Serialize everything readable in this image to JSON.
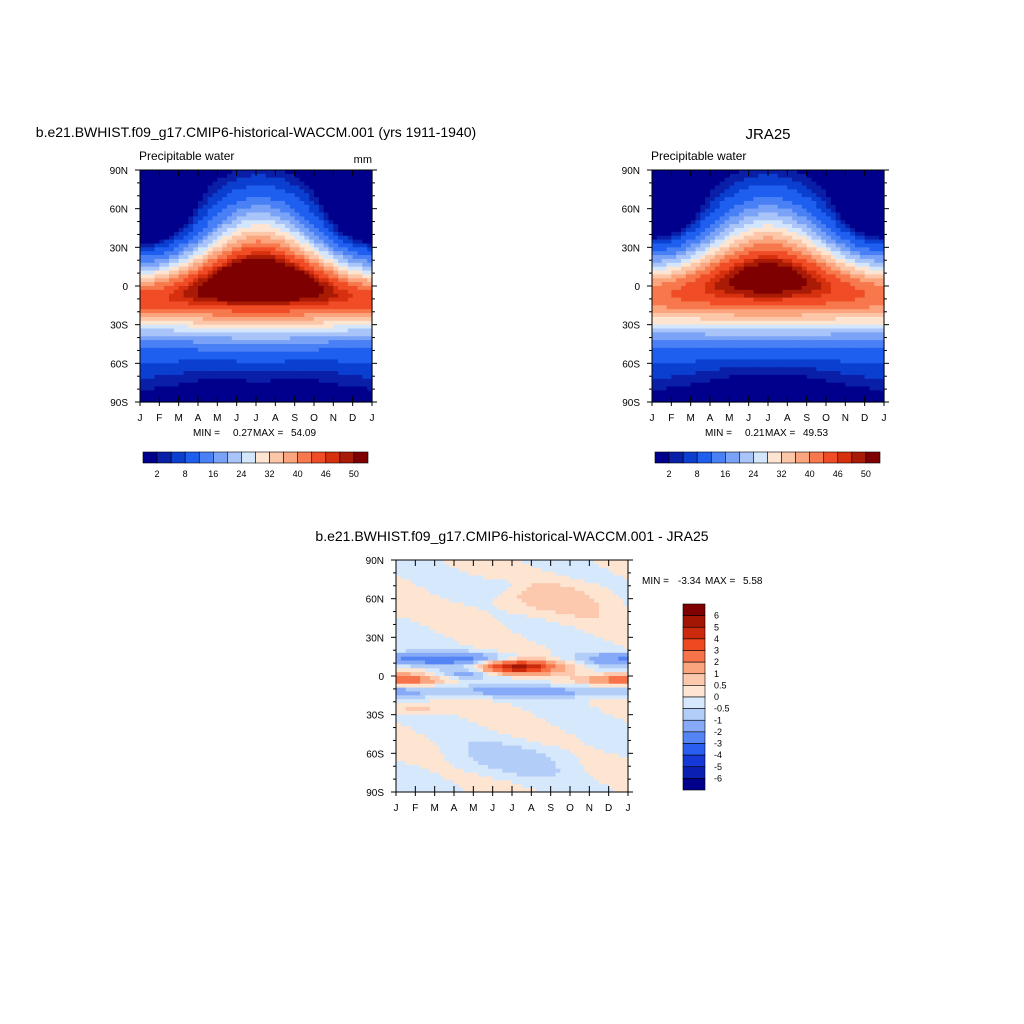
{
  "chart_data": [
    {
      "type": "heatmap",
      "panel": "model",
      "title": "b.e21.BWHIST.f09_g17.CMIP6-historical-WACCM.001 (yrs 1911-1940)",
      "variable_label": "Precipitable water",
      "units": "mm",
      "x_ticks": [
        "J",
        "F",
        "M",
        "A",
        "M",
        "J",
        "J",
        "A",
        "S",
        "O",
        "N",
        "D",
        "J"
      ],
      "y_ticks": [
        "90N",
        "60N",
        "30N",
        "0",
        "30S",
        "60S",
        "90S"
      ],
      "min_label": "MIN =",
      "min_value": "0.27",
      "max_label": "MAX =",
      "max_value": "54.09",
      "colorbar_labels": [
        "2",
        "8",
        "16",
        "24",
        "32",
        "40",
        "46",
        "50"
      ],
      "colorbar_levels": [
        1,
        2,
        4,
        8,
        12,
        16,
        20,
        24,
        28,
        32,
        36,
        40,
        44,
        46,
        48,
        50
      ],
      "colors": [
        "#00008c",
        "#0a1fa8",
        "#0a3fd0",
        "#1f5ff0",
        "#4a80f5",
        "#7aa3f7",
        "#a8c4f8",
        "#d3e6fc",
        "#fde5d2",
        "#fcc6a8",
        "#fba57e",
        "#f7784c",
        "#f04d26",
        "#d6300f",
        "#aa1b06",
        "#7f0000"
      ],
      "grid": {
        "peak": 54.09,
        "peak_month": 7.2,
        "eq_lat_start": -5,
        "eq_lat_amp": 14,
        "width_base": 24,
        "width_amp": 6
      }
    },
    {
      "type": "heatmap",
      "panel": "obs",
      "title": "JRA25",
      "variable_label": "Precipitable water",
      "x_ticks": [
        "J",
        "F",
        "M",
        "A",
        "M",
        "J",
        "J",
        "A",
        "S",
        "O",
        "N",
        "D",
        "J"
      ],
      "y_ticks": [
        "90N",
        "60N",
        "30N",
        "0",
        "30S",
        "60S",
        "90S"
      ],
      "min_label": "MIN =",
      "min_value": "0.21",
      "max_label": "MAX =",
      "max_value": "49.53",
      "colorbar_labels": [
        "2",
        "8",
        "16",
        "24",
        "32",
        "40",
        "46",
        "50"
      ],
      "colorbar_levels": [
        1,
        2,
        4,
        8,
        12,
        16,
        20,
        24,
        28,
        32,
        36,
        40,
        44,
        46,
        48,
        50
      ],
      "colors": [
        "#00008c",
        "#0a1fa8",
        "#0a3fd0",
        "#1f5ff0",
        "#4a80f5",
        "#7aa3f7",
        "#a8c4f8",
        "#d3e6fc",
        "#fde5d2",
        "#fcc6a8",
        "#fba57e",
        "#f7784c",
        "#f04d26",
        "#d6300f",
        "#aa1b06",
        "#7f0000"
      ],
      "grid": {
        "peak": 49.53,
        "peak_month": 7.0,
        "eq_lat_start": -3,
        "eq_lat_amp": 13,
        "width_base": 25,
        "width_amp": 5
      }
    },
    {
      "type": "heatmap",
      "panel": "diff",
      "title": "b.e21.BWHIST.f09_g17.CMIP6-historical-WACCM.001 - JRA25",
      "x_ticks": [
        "J",
        "F",
        "M",
        "A",
        "M",
        "J",
        "J",
        "A",
        "S",
        "O",
        "N",
        "D",
        "J"
      ],
      "y_ticks": [
        "90N",
        "60N",
        "30N",
        "0",
        "30S",
        "60S",
        "90S"
      ],
      "min_label": "MIN =",
      "min_value": "-3.34",
      "max_label": "MAX =",
      "max_value": "5.58",
      "colorbar_labels": [
        "6",
        "5",
        "4",
        "3",
        "2",
        "1",
        "0.5",
        "0",
        "-0.5",
        "-1",
        "-2",
        "-3",
        "-4",
        "-5",
        "-6"
      ],
      "colorbar_levels": [
        -6,
        -5,
        -4,
        -3,
        -2,
        -1,
        -0.5,
        0,
        0.5,
        1,
        2,
        3,
        4,
        5,
        6
      ],
      "colors": [
        "#00008c",
        "#0a20b0",
        "#1538d6",
        "#2a5ef0",
        "#5585f5",
        "#86aaf7",
        "#b3cdf9",
        "#d6e8fc",
        "#fde5d2",
        "#fcc8ae",
        "#fba57e",
        "#f7744a",
        "#ee4a22",
        "#cc2a0c",
        "#a31604",
        "#7f0000"
      ]
    }
  ]
}
